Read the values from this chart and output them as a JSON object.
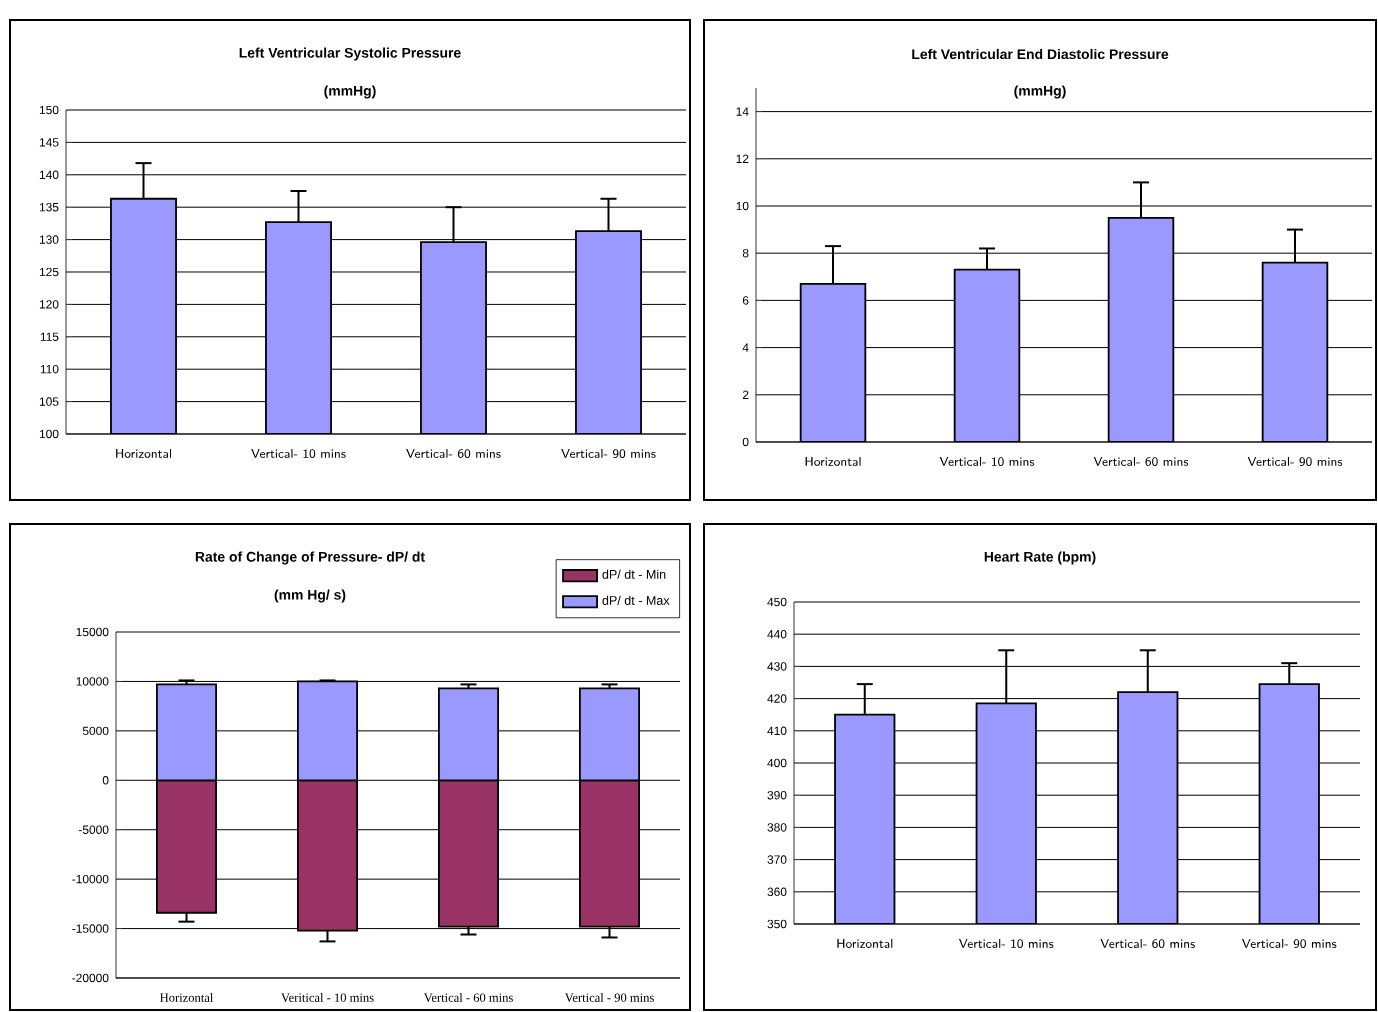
{
  "chart_data": [
    {
      "type": "bar",
      "title": "Left Ventricular Systolic Pressure",
      "subtitle": "(mmHg)",
      "categories": [
        "Horizontal",
        "Vertical- 10 mins",
        "Vertical- 60 mins",
        "Vertical- 90 mins"
      ],
      "values": [
        136.3,
        132.7,
        129.6,
        131.3
      ],
      "color": "#9999ff",
      "errors": [
        [
          136.3,
          141.8
        ],
        [
          132.7,
          137.5
        ],
        [
          129.6,
          135.0
        ],
        [
          131.3,
          136.3
        ]
      ],
      "ylim": [
        100,
        150
      ],
      "yticks": [
        100,
        105,
        110,
        115,
        120,
        125,
        130,
        135,
        140,
        145,
        150
      ],
      "grid": "y"
    },
    {
      "type": "bar",
      "title": "Left Ventricular End Diastolic Pressure",
      "subtitle": "(mmHg)",
      "categories": [
        "Horizontal",
        "Vertical- 10 mins",
        "Vertical- 60 mins",
        "Vertical- 90 mins"
      ],
      "values": [
        6.7,
        7.3,
        9.5,
        7.6
      ],
      "color": "#9999ff",
      "errors": [
        [
          6.7,
          8.3
        ],
        [
          7.3,
          8.2
        ],
        [
          9.5,
          11.0
        ],
        [
          7.6,
          9.0
        ]
      ],
      "ylim": [
        0,
        15
      ],
      "yticks": [
        0,
        2,
        4,
        6,
        8,
        10,
        12,
        14
      ],
      "grid": "y"
    },
    {
      "type": "bar",
      "title": "Rate of Change of Pressure- dP/ dt",
      "subtitle": "(mm Hg/ s)",
      "categories": [
        "Horizontal",
        "Veritical - 10 mins",
        "Vertical - 60 mins",
        "Vertical - 90 mins"
      ],
      "stacked": true,
      "series": [
        {
          "name": "dP/ dt - Min",
          "color": "#993366",
          "values": [
            -13400,
            -15200,
            -14800,
            -14800
          ],
          "errors": [
            [
              -14300,
              -13400
            ],
            [
              -16300,
              -15200
            ],
            [
              -15600,
              -14800
            ],
            [
              -15900,
              -14800
            ]
          ]
        },
        {
          "name": "dP/ dt - Max",
          "color": "#9999ff",
          "values": [
            9700,
            10000,
            9300,
            9300
          ],
          "errors": [
            [
              9700,
              10100
            ],
            [
              10000,
              10100
            ],
            [
              9300,
              9700
            ],
            [
              9300,
              9700
            ]
          ]
        }
      ],
      "ylim": [
        -20000,
        15000
      ],
      "yticks": [
        -20000,
        -15000,
        -10000,
        -5000,
        0,
        5000,
        10000,
        15000
      ],
      "grid": "y",
      "legend": "top right"
    },
    {
      "type": "bar",
      "title": "Heart Rate (bpm)",
      "categories": [
        "Horizontal",
        "Vertical- 10 mins",
        "Vertical- 60 mins",
        "Vertical- 90 mins"
      ],
      "values": [
        415,
        418.5,
        422,
        424.5
      ],
      "color": "#9999ff",
      "errors": [
        [
          415,
          424.5
        ],
        [
          418.5,
          435
        ],
        [
          422,
          435
        ],
        [
          424.5,
          431
        ]
      ],
      "ylim": [
        350,
        450
      ],
      "yticks": [
        350,
        360,
        370,
        380,
        390,
        400,
        410,
        420,
        430,
        440,
        450
      ],
      "grid": "y"
    }
  ]
}
